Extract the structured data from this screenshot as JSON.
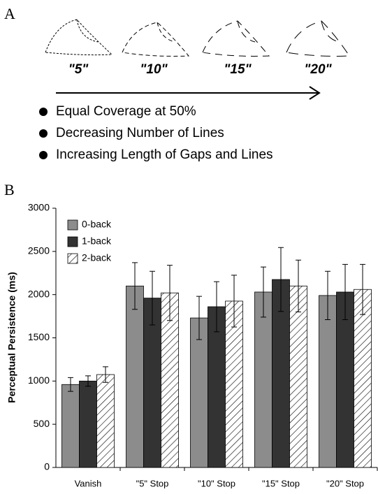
{
  "panel_a": {
    "label": "A",
    "stimuli": [
      "\"5\"",
      "\"10\"",
      "\"15\"",
      "\"20\""
    ],
    "bullets": [
      "Equal Coverage at 50%",
      "Decreasing Number of Lines",
      "Increasing Length of Gaps and Lines"
    ]
  },
  "panel_b_label": "B",
  "chart_data": {
    "type": "bar",
    "y_label": "Perceptual Persistence (ms)",
    "categories": [
      "Vanish",
      "\"5\" Stop",
      "\"10\" Stop",
      "\"15\" Stop",
      "\"20\" Stop"
    ],
    "series": [
      {
        "name": "0-back",
        "color": "#8c8c8c",
        "values": [
          960,
          2100,
          1730,
          2030,
          1990
        ],
        "errors": [
          80,
          270,
          250,
          290,
          280
        ]
      },
      {
        "name": "1-back",
        "color": "#333333",
        "values": [
          1000,
          1960,
          1860,
          2175,
          2030
        ],
        "errors": [
          60,
          310,
          290,
          370,
          320
        ]
      },
      {
        "name": "2-back",
        "color": "#ffffff",
        "hatch": true,
        "values": [
          1075,
          2020,
          1925,
          2100,
          2060
        ],
        "errors": [
          90,
          320,
          300,
          300,
          290
        ]
      }
    ],
    "ylim": [
      0,
      3000
    ],
    "yticks": [
      0,
      500,
      1000,
      1500,
      2000,
      2500,
      3000
    ],
    "legend": "top-left"
  }
}
